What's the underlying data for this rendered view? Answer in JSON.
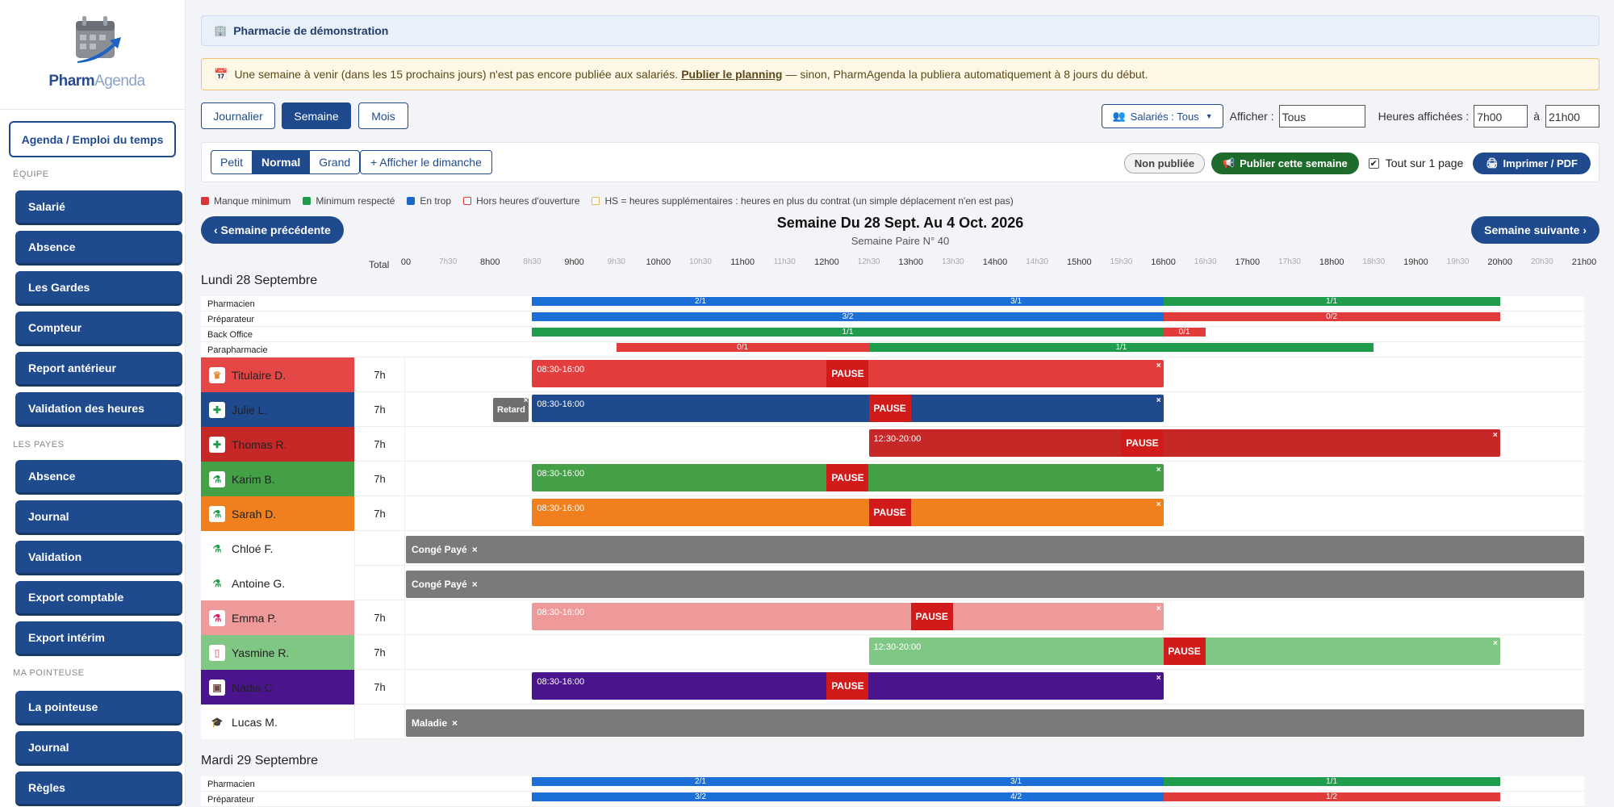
{
  "sidebar": {
    "logo_text_a": "Pharm",
    "logo_text_b": "Agenda",
    "agenda_button": "Agenda / Emploi du temps",
    "sections": [
      {
        "title": "Équipe",
        "items": [
          "Salarié",
          "Absence",
          "Les Gardes",
          "Compteur",
          "Report antérieur",
          "Validation des heures"
        ]
      },
      {
        "title": "Les payes",
        "items": [
          "Absence",
          "Journal",
          "Validation",
          "Export comptable",
          "Export intérim"
        ]
      },
      {
        "title": "Ma pointeuse",
        "items": [
          "La pointeuse",
          "Journal",
          "Règles"
        ]
      }
    ]
  },
  "header": {
    "pharmacy_name": "Pharmacie de démonstration",
    "alert_text": "Une semaine à venir (dans les 15 prochains jours) n'est pas encore publiée aux salariés.",
    "alert_link": "Publier le planning",
    "alert_suffix": "— sinon, PharmAgenda la publiera automatiquement à 8 jours du début."
  },
  "view_tabs": [
    "Journalier",
    "Semaine",
    "Mois"
  ],
  "filters": {
    "salaries_label": "Salariés : Tous",
    "afficher_label": "Afficher :",
    "afficher_value": "Tous",
    "heures_label": "Heures affichées :",
    "heure_debut": "7h00",
    "a_label": "à",
    "heure_fin": "21h00"
  },
  "toolbar": {
    "sizes": [
      "Petit",
      "Normal",
      "Grand"
    ],
    "active_size": "Normal",
    "sunday_button": "+ Afficher le dimanche",
    "status_badge": "Non publiée",
    "publish_button": "Publier cette semaine",
    "one_page_label": "Tout sur 1 page",
    "print_button": "Imprimer / PDF"
  },
  "legend": [
    {
      "label": "Manque minimum",
      "color": "#d9343a",
      "style": "fill"
    },
    {
      "label": "Minimum respecté",
      "color": "#1e9c4a",
      "style": "fill"
    },
    {
      "label": "En trop",
      "color": "#1b66c9",
      "style": "fill"
    },
    {
      "label": "Hors heures d'ouverture",
      "color": "#d9343a",
      "style": "outline"
    },
    {
      "label": "HS = heures supplémentaires : heures en plus du contrat (un simple déplacement n'en est pas)",
      "color": "#f0b44c",
      "style": "outline"
    }
  ],
  "nav": {
    "prev": "‹ Semaine précédente",
    "next": "Semaine suivante ›",
    "title": "Semaine Du 28 Sept. Au 4 Oct. 2026",
    "subtitle": "Semaine Paire N° 40"
  },
  "timeline": {
    "total_label": "Total",
    "start": 7,
    "end": 21,
    "ticks": [
      "00",
      "7h30",
      "8h00",
      "8h30",
      "9h00",
      "9h30",
      "10h00",
      "10h30",
      "11h00",
      "11h30",
      "12h00",
      "12h30",
      "13h00",
      "13h30",
      "14h00",
      "14h30",
      "15h00",
      "15h30",
      "16h00",
      "16h30",
      "17h00",
      "17h30",
      "18h00",
      "18h30",
      "19h00",
      "19h30",
      "20h00",
      "20h30",
      "21h00"
    ]
  },
  "colors": {
    "red": "#e23b3b",
    "green": "#1f9d4c",
    "blue": "#1b6fd6",
    "navy": "#1f4b8e"
  },
  "days": [
    {
      "label": "Lundi 28 Septembre",
      "coverage": [
        {
          "role": "Pharmacien",
          "segments": [
            {
              "from": 8.5,
              "to": 16,
              "label": "2/1",
              "color": "blue",
              "split": 12.5
            },
            {
              "from": 16,
              "to": 20,
              "label": "1/1",
              "color": "green"
            }
          ]
        },
        {
          "role": "Préparateur",
          "segments": [
            {
              "from": 8.5,
              "to": 16,
              "label": "3/2",
              "color": "blue"
            },
            {
              "from": 16,
              "to": 20,
              "label": "0/2",
              "color": "red"
            }
          ]
        },
        {
          "role": "Back Office",
          "segments": [
            {
              "from": 8.5,
              "to": 16,
              "label": "1/1",
              "color": "green"
            },
            {
              "from": 16,
              "to": 16.5,
              "label": "0/1",
              "color": "red"
            }
          ]
        },
        {
          "role": "Parapharmacie",
          "segments": [
            {
              "from": 9.5,
              "to": 12.5,
              "label": "0/1",
              "color": "red"
            },
            {
              "from": 12.5,
              "to": 18.5,
              "label": "1/1",
              "color": "green"
            }
          ]
        }
      ],
      "employees": [
        {
          "name": "Titulaire D.",
          "total": "7h",
          "row_color": "#e54646",
          "badge": "♛",
          "badge_color": "#e08a2c",
          "shift": {
            "from": 8.5,
            "to": 16,
            "text": "08:30-16:00",
            "color": "#e43d3d",
            "pause_at": 12
          }
        },
        {
          "name": "Julie L.",
          "total": "7h",
          "row_color": "#1f4b8e",
          "badge": "✚",
          "badge_color": "#1f9d4c",
          "retard": "Retard",
          "shift": {
            "from": 8.5,
            "to": 16,
            "text": "08:30-16:00",
            "color": "#1f4b8e",
            "pause_at": 12.5
          }
        },
        {
          "name": "Thomas R.",
          "total": "7h",
          "row_color": "#c62828",
          "badge": "✚",
          "badge_color": "#1f9d4c",
          "shift": {
            "from": 12.5,
            "to": 20,
            "text": "12:30-20:00",
            "color": "#c62828",
            "pause_at": 15.5
          }
        },
        {
          "name": "Karim B.",
          "total": "7h",
          "row_color": "#43a047",
          "badge": "⚗",
          "badge_color": "#1f9d4c",
          "shift": {
            "from": 8.5,
            "to": 16,
            "text": "08:30-16:00",
            "color": "#43a047",
            "pause_at": 12
          }
        },
        {
          "name": "Sarah D.",
          "total": "7h",
          "row_color": "#f0801e",
          "badge": "⚗",
          "badge_color": "#1f9d4c",
          "shift": {
            "from": 8.5,
            "to": 16,
            "text": "08:30-16:00",
            "color": "#f0801e",
            "pause_at": 12.5
          }
        },
        {
          "name": "Chloé F.",
          "total": "",
          "row_color": "#ffffff",
          "badge": "⚗",
          "badge_color": "#1f9d4c",
          "absence": {
            "label": "Congé Payé",
            "from": 7,
            "to": 21
          }
        },
        {
          "name": "Antoine G.",
          "total": "",
          "row_color": "#ffffff",
          "badge": "⚗",
          "badge_color": "#1f9d4c",
          "absence": {
            "label": "Congé Payé",
            "from": 7,
            "to": 21
          }
        },
        {
          "name": "Emma P.",
          "total": "7h",
          "row_color": "#ef9a9a",
          "badge": "⚗",
          "badge_color": "#d81b60",
          "shift": {
            "from": 8.5,
            "to": 16,
            "text": "08:30-16:00",
            "color": "#ef9a9a",
            "pause_at": 13
          }
        },
        {
          "name": "Yasmine R.",
          "total": "7h",
          "row_color": "#81c784",
          "badge": "▯",
          "badge_color": "#e88aa8",
          "shift": {
            "from": 12.5,
            "to": 20,
            "text": "12:30-20:00",
            "color": "#81c784",
            "pause_at": 16
          }
        },
        {
          "name": "Nadia C.",
          "total": "7h",
          "row_color": "#4a148c",
          "badge": "▣",
          "badge_color": "#6d4c41",
          "shift": {
            "from": 8.5,
            "to": 16,
            "text": "08:30-16:00",
            "color": "#4a148c",
            "pause_at": 12
          }
        },
        {
          "name": "Lucas M.",
          "total": "",
          "row_color": "#ffffff",
          "badge": "🎓",
          "badge_color": "#333333",
          "absence": {
            "label": "Maladie",
            "from": 7,
            "to": 21
          }
        }
      ]
    },
    {
      "label": "Mardi 29 Septembre",
      "coverage": [
        {
          "role": "Pharmacien",
          "segments": [
            {
              "from": 8.5,
              "to": 16,
              "label": "2/1",
              "color": "blue",
              "split": 12.5,
              "label2": "3/1"
            },
            {
              "from": 16,
              "to": 20,
              "label": "1/1",
              "color": "green"
            }
          ]
        },
        {
          "role": "Préparateur",
          "segments": [
            {
              "from": 8.5,
              "to": 16,
              "label": "3/2",
              "color": "blue",
              "split": 12.5,
              "label2": "4/2"
            },
            {
              "from": 16,
              "to": 20,
              "label": "1/2",
              "color": "red"
            }
          ]
        }
      ],
      "employees": []
    }
  ],
  "day1_split_labels": {
    "pharmacien_second": "3/1"
  }
}
